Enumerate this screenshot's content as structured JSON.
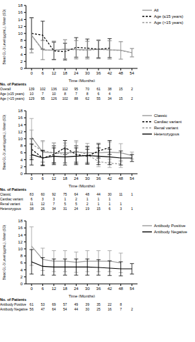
{
  "chart_data": [
    {
      "type": "line",
      "x": [
        0,
        6,
        12,
        18,
        24,
        30,
        36,
        42,
        48,
        54
      ],
      "xlim": [
        -3,
        57
      ],
      "xticks": [
        0,
        6,
        12,
        18,
        24,
        30,
        36,
        42,
        48,
        54
      ],
      "ylim": [
        0,
        18
      ],
      "yticks": [
        0,
        2,
        4,
        6,
        8,
        10,
        12,
        14,
        16,
        18
      ],
      "x_label": "Time (Months)",
      "y_label": "Blood GL-3 Level (µg/mL), Mean (SD)",
      "legend": "right",
      "series": [
        {
          "name": "All",
          "color": "#9a9a9a",
          "line_style": "solid",
          "values": [
            9.5,
            5.3,
            5.2,
            5.5,
            5.4,
            5.3,
            5.5,
            5.3,
            5.2,
            4.5
          ],
          "sd": [
            5.0,
            2.8,
            2.6,
            2.7,
            2.6,
            2.5,
            2.7,
            2.6,
            2.5,
            1.2
          ]
        },
        {
          "name": "Age (≤15 years)",
          "color": "#000000",
          "line_style": "dashed",
          "values": [
            10.0,
            9.5,
            5.0,
            4.8,
            6.0,
            5.8,
            5.5,
            5.8,
            null,
            null
          ],
          "sd": [
            4.5,
            4.0,
            2.5,
            2.4,
            2.8,
            2.6,
            2.5,
            2.7,
            null,
            null
          ]
        },
        {
          "name": "Age (>15 years)",
          "color": "#9a9a9a",
          "line_style": "dashed",
          "values": [
            9.4,
            5.2,
            5.2,
            5.5,
            5.3,
            5.2,
            5.4,
            5.3,
            5.1,
            4.5
          ],
          "sd": [
            5.0,
            2.7,
            2.6,
            2.7,
            2.6,
            2.5,
            2.6,
            2.6,
            2.5,
            1.2
          ]
        }
      ],
      "patients": {
        "title": "No. of Patients",
        "rows": [
          {
            "label": "Overall",
            "values": [
              139,
              102,
              136,
              112,
              95,
              70,
              61,
              38,
              15,
              2
            ]
          },
          {
            "label": "Age (≤15 years)",
            "values": [
              10,
              7,
              10,
              8,
              7,
              8,
              6,
              4
            ]
          },
          {
            "label": "Age (>15 years)",
            "values": [
              129,
              95,
              126,
              102,
              88,
              62,
              55,
              34,
              15,
              2
            ]
          }
        ]
      }
    },
    {
      "type": "line",
      "x": [
        0,
        6,
        12,
        18,
        24,
        30,
        36,
        42,
        48,
        54
      ],
      "xlim": [
        -3,
        57
      ],
      "xticks": [
        0,
        6,
        12,
        18,
        24,
        30,
        36,
        42,
        48,
        54
      ],
      "ylim": [
        0,
        18
      ],
      "yticks": [
        0,
        2,
        4,
        6,
        8,
        10,
        12,
        14,
        16,
        18
      ],
      "x_label": "Time (Months)",
      "y_label": "Blood GL-3 Level (µg/mL), Mean (SD)",
      "legend": "right",
      "series": [
        {
          "name": "Classic",
          "color": "#9a9a9a",
          "line_style": "solid",
          "values": [
            10.5,
            6.2,
            6.0,
            6.0,
            6.2,
            6.0,
            6.0,
            6.2,
            6.0,
            5.2
          ],
          "sd": [
            5.3,
            3.0,
            2.8,
            2.8,
            2.9,
            2.7,
            2.8,
            2.9,
            2.6,
            1.0
          ]
        },
        {
          "name": "Cardiac variant",
          "color": "#000000",
          "line_style": "dashed",
          "values": [
            7.0,
            4.5,
            5.5,
            7.5,
            5.5,
            5.0,
            6.5,
            7.5,
            null,
            null
          ],
          "sd": [
            3.0,
            2.0,
            2.5,
            2.0,
            2.5,
            2.0,
            2.0,
            2.0,
            null,
            null
          ]
        },
        {
          "name": "Renal variant",
          "color": "#9a9a9a",
          "line_style": "dashed",
          "values": [
            8.5,
            6.5,
            6.0,
            5.5,
            6.5,
            5.5,
            3.5,
            3.0,
            2.8,
            null
          ],
          "sd": [
            4.0,
            3.0,
            2.8,
            2.5,
            3.0,
            2.5,
            1.5,
            1.2,
            1.0,
            null
          ]
        },
        {
          "name": "Heterozygous",
          "color": "#000000",
          "line_style": "solid",
          "values": [
            5.5,
            4.5,
            5.0,
            4.8,
            5.0,
            5.2,
            5.0,
            4.8,
            4.5,
            4.5
          ],
          "sd": [
            3.0,
            2.2,
            2.4,
            2.3,
            2.4,
            2.5,
            2.4,
            2.2,
            2.0,
            1.0
          ]
        }
      ],
      "patients": {
        "title": "No. of Patients",
        "rows": [
          {
            "label": "Classic",
            "values": [
              83,
              60,
              92,
              75,
              64,
              48,
              44,
              30,
              11,
              1
            ]
          },
          {
            "label": "Cardiac variant",
            "values": [
              6,
              3,
              3,
              1,
              2,
              1,
              1,
              1
            ]
          },
          {
            "label": "Renal variant",
            "values": [
              11,
              12,
              7,
              5,
              5,
              2,
              1,
              1,
              1
            ]
          },
          {
            "label": "Heterozygous",
            "values": [
              38,
              26,
              34,
              31,
              24,
              19,
              15,
              6,
              3,
              1
            ]
          }
        ]
      }
    },
    {
      "type": "line",
      "x": [
        0,
        6,
        12,
        18,
        24,
        30,
        36,
        42,
        48,
        54
      ],
      "xlim": [
        -3,
        57
      ],
      "xticks": [
        0,
        6,
        12,
        18,
        24,
        30,
        36,
        42,
        48,
        54
      ],
      "ylim": [
        0,
        18
      ],
      "yticks": [
        0,
        2,
        4,
        6,
        8,
        10,
        12,
        14,
        16,
        18
      ],
      "x_label": "Time (Months)",
      "y_label": "Blood GL-3 Level (µg/mL), Mean (SD)",
      "legend": "right",
      "series": [
        {
          "name": "Antibody Positive",
          "color": "#9a9a9a",
          "line_style": "solid",
          "values": [
            10.8,
            7.0,
            6.5,
            6.5,
            6.2,
            6.5,
            6.5,
            6.5,
            6.0,
            null
          ],
          "sd": [
            5.5,
            3.2,
            3.0,
            3.0,
            2.9,
            3.0,
            3.0,
            3.0,
            2.8,
            null
          ]
        },
        {
          "name": "Antibody Negative",
          "color": "#000000",
          "line_style": "solid",
          "values": [
            6.3,
            5.0,
            4.8,
            4.8,
            4.8,
            4.8,
            4.7,
            4.5,
            4.3,
            4.3
          ],
          "sd": [
            3.5,
            2.5,
            2.3,
            2.3,
            2.3,
            2.3,
            2.2,
            2.1,
            2.0,
            1.5
          ]
        }
      ],
      "patients": {
        "title": "No. of Patients",
        "rows": [
          {
            "label": "Antibody Positive",
            "values": [
              61,
              53,
              69,
              57,
              49,
              39,
              35,
              22,
              8
            ]
          },
          {
            "label": "Antibody Negative",
            "values": [
              56,
              47,
              64,
              54,
              44,
              30,
              25,
              16,
              7,
              2
            ]
          }
        ]
      }
    }
  ]
}
